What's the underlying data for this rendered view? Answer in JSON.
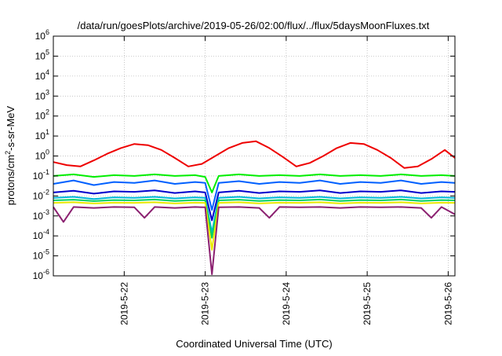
{
  "chart_data": {
    "type": "line",
    "title": "/data/run/goesPlots/archive/2019-05-26/02:00/flux/../flux/5daysMoonFluxes.txt",
    "xlabel": "Coordinated Universal Time (UTC)",
    "ylabel": {
      "prefix": "protons/cm",
      "sup": "2",
      "suffix": "-s-sr-MeV"
    },
    "y_scale": "log",
    "ylim": [
      1e-06,
      1000000.0
    ],
    "y_ticks": [
      {
        "base": "10",
        "exp": "-6",
        "value": 1e-06
      },
      {
        "base": "10",
        "exp": "-5",
        "value": 1e-05
      },
      {
        "base": "10",
        "exp": "-4",
        "value": 0.0001
      },
      {
        "base": "10",
        "exp": "-3",
        "value": 0.001
      },
      {
        "base": "10",
        "exp": "-2",
        "value": 0.01
      },
      {
        "base": "10",
        "exp": "-1",
        "value": 0.1
      },
      {
        "base": "10",
        "exp": "0",
        "value": 1
      },
      {
        "base": "10",
        "exp": "1",
        "value": 10
      },
      {
        "base": "10",
        "exp": "2",
        "value": 100
      },
      {
        "base": "10",
        "exp": "3",
        "value": 1000
      },
      {
        "base": "10",
        "exp": "4",
        "value": 10000
      },
      {
        "base": "10",
        "exp": "5",
        "value": 100000
      },
      {
        "base": "10",
        "exp": "6",
        "value": 1000000
      }
    ],
    "xlim": [
      "2019-05-21T03:00",
      "2019-05-26T02:00"
    ],
    "x_ticks": [
      {
        "label": "2019-5-22",
        "value": "2019-05-22T00:00"
      },
      {
        "label": "2019-5-23",
        "value": "2019-05-23T00:00"
      },
      {
        "label": "2019-5-24",
        "value": "2019-05-24T00:00"
      },
      {
        "label": "2019-5-25",
        "value": "2019-05-25T00:00"
      },
      {
        "label": "2019-5-26",
        "value": "2019-05-26T00:00"
      }
    ],
    "grid": true,
    "series": [
      {
        "color": "#ee0000",
        "points": [
          [
            "2019-05-21T03:00",
            0.5
          ],
          [
            "2019-05-21T07:00",
            0.35
          ],
          [
            "2019-05-21T11:00",
            0.3
          ],
          [
            "2019-05-21T15:00",
            0.6
          ],
          [
            "2019-05-21T19:00",
            1.3
          ],
          [
            "2019-05-21T23:00",
            2.5
          ],
          [
            "2019-05-22T03:00",
            4.0
          ],
          [
            "2019-05-22T07:00",
            3.5
          ],
          [
            "2019-05-22T11:00",
            2.0
          ],
          [
            "2019-05-22T15:00",
            0.8
          ],
          [
            "2019-05-22T19:00",
            0.3
          ],
          [
            "2019-05-22T23:00",
            0.4
          ],
          [
            "2019-05-23T03:00",
            1.0
          ],
          [
            "2019-05-23T07:00",
            2.5
          ],
          [
            "2019-05-23T11:00",
            4.5
          ],
          [
            "2019-05-23T15:00",
            5.5
          ],
          [
            "2019-05-23T19:00",
            2.5
          ],
          [
            "2019-05-23T23:00",
            0.9
          ],
          [
            "2019-05-24T03:00",
            0.3
          ],
          [
            "2019-05-24T07:00",
            0.45
          ],
          [
            "2019-05-24T11:00",
            1.0
          ],
          [
            "2019-05-24T15:00",
            2.5
          ],
          [
            "2019-05-24T19:00",
            4.5
          ],
          [
            "2019-05-24T23:00",
            4.0
          ],
          [
            "2019-05-25T03:00",
            2.0
          ],
          [
            "2019-05-25T07:00",
            0.8
          ],
          [
            "2019-05-25T11:00",
            0.25
          ],
          [
            "2019-05-25T15:00",
            0.3
          ],
          [
            "2019-05-25T19:00",
            0.7
          ],
          [
            "2019-05-25T23:00",
            2.0
          ],
          [
            "2019-05-26T02:00",
            0.8
          ]
        ]
      },
      {
        "color": "#00ee00",
        "points": [
          [
            "2019-05-21T03:00",
            0.1
          ],
          [
            "2019-05-21T09:00",
            0.12
          ],
          [
            "2019-05-21T15:00",
            0.09
          ],
          [
            "2019-05-21T21:00",
            0.11
          ],
          [
            "2019-05-22T03:00",
            0.1
          ],
          [
            "2019-05-22T09:00",
            0.12
          ],
          [
            "2019-05-22T15:00",
            0.1
          ],
          [
            "2019-05-22T21:00",
            0.11
          ],
          [
            "2019-05-23T00:00",
            0.09
          ],
          [
            "2019-05-23T02:00",
            0.015
          ],
          [
            "2019-05-23T04:00",
            0.1
          ],
          [
            "2019-05-23T10:00",
            0.12
          ],
          [
            "2019-05-23T16:00",
            0.1
          ],
          [
            "2019-05-23T22:00",
            0.11
          ],
          [
            "2019-05-24T04:00",
            0.1
          ],
          [
            "2019-05-24T10:00",
            0.12
          ],
          [
            "2019-05-24T16:00",
            0.1
          ],
          [
            "2019-05-24T22:00",
            0.11
          ],
          [
            "2019-05-25T04:00",
            0.1
          ],
          [
            "2019-05-25T10:00",
            0.12
          ],
          [
            "2019-05-25T16:00",
            0.1
          ],
          [
            "2019-05-25T22:00",
            0.11
          ],
          [
            "2019-05-26T02:00",
            0.1
          ]
        ]
      },
      {
        "color": "#0060ff",
        "points": [
          [
            "2019-05-21T03:00",
            0.04
          ],
          [
            "2019-05-21T09:00",
            0.06
          ],
          [
            "2019-05-21T15:00",
            0.035
          ],
          [
            "2019-05-21T21:00",
            0.05
          ],
          [
            "2019-05-22T03:00",
            0.045
          ],
          [
            "2019-05-22T09:00",
            0.06
          ],
          [
            "2019-05-22T15:00",
            0.04
          ],
          [
            "2019-05-22T21:00",
            0.05
          ],
          [
            "2019-05-23T00:00",
            0.045
          ],
          [
            "2019-05-23T02:00",
            0.002
          ],
          [
            "2019-05-23T04:00",
            0.045
          ],
          [
            "2019-05-23T10:00",
            0.055
          ],
          [
            "2019-05-23T16:00",
            0.04
          ],
          [
            "2019-05-23T22:00",
            0.05
          ],
          [
            "2019-05-24T04:00",
            0.045
          ],
          [
            "2019-05-24T10:00",
            0.06
          ],
          [
            "2019-05-24T16:00",
            0.04
          ],
          [
            "2019-05-24T22:00",
            0.05
          ],
          [
            "2019-05-25T04:00",
            0.045
          ],
          [
            "2019-05-25T10:00",
            0.06
          ],
          [
            "2019-05-25T16:00",
            0.04
          ],
          [
            "2019-05-25T22:00",
            0.05
          ],
          [
            "2019-05-26T02:00",
            0.045
          ]
        ]
      },
      {
        "color": "#0000cc",
        "points": [
          [
            "2019-05-21T03:00",
            0.015
          ],
          [
            "2019-05-21T09:00",
            0.018
          ],
          [
            "2019-05-21T15:00",
            0.013
          ],
          [
            "2019-05-21T21:00",
            0.017
          ],
          [
            "2019-05-22T03:00",
            0.016
          ],
          [
            "2019-05-22T09:00",
            0.019
          ],
          [
            "2019-05-22T15:00",
            0.014
          ],
          [
            "2019-05-22T21:00",
            0.017
          ],
          [
            "2019-05-23T00:00",
            0.015
          ],
          [
            "2019-05-23T02:00",
            0.0006
          ],
          [
            "2019-05-23T04:00",
            0.015
          ],
          [
            "2019-05-23T10:00",
            0.018
          ],
          [
            "2019-05-23T16:00",
            0.014
          ],
          [
            "2019-05-23T22:00",
            0.017
          ],
          [
            "2019-05-24T04:00",
            0.016
          ],
          [
            "2019-05-24T10:00",
            0.019
          ],
          [
            "2019-05-24T16:00",
            0.014
          ],
          [
            "2019-05-24T22:00",
            0.017
          ],
          [
            "2019-05-25T04:00",
            0.016
          ],
          [
            "2019-05-25T10:00",
            0.019
          ],
          [
            "2019-05-25T16:00",
            0.014
          ],
          [
            "2019-05-25T22:00",
            0.017
          ],
          [
            "2019-05-26T02:00",
            0.016
          ]
        ]
      },
      {
        "color": "#00b8d8",
        "points": [
          [
            "2019-05-21T03:00",
            0.008
          ],
          [
            "2019-05-21T09:00",
            0.009
          ],
          [
            "2019-05-21T15:00",
            0.007
          ],
          [
            "2019-05-21T21:00",
            0.0085
          ],
          [
            "2019-05-22T03:00",
            0.008
          ],
          [
            "2019-05-22T09:00",
            0.009
          ],
          [
            "2019-05-22T15:00",
            0.0075
          ],
          [
            "2019-05-22T21:00",
            0.0085
          ],
          [
            "2019-05-23T00:00",
            0.008
          ],
          [
            "2019-05-23T02:00",
            0.00015
          ],
          [
            "2019-05-23T04:00",
            0.008
          ],
          [
            "2019-05-23T10:00",
            0.009
          ],
          [
            "2019-05-23T16:00",
            0.0075
          ],
          [
            "2019-05-23T22:00",
            0.0085
          ],
          [
            "2019-05-24T04:00",
            0.008
          ],
          [
            "2019-05-24T10:00",
            0.009
          ],
          [
            "2019-05-24T16:00",
            0.0075
          ],
          [
            "2019-05-24T22:00",
            0.0085
          ],
          [
            "2019-05-25T04:00",
            0.008
          ],
          [
            "2019-05-25T10:00",
            0.009
          ],
          [
            "2019-05-25T16:00",
            0.0075
          ],
          [
            "2019-05-25T22:00",
            0.0085
          ],
          [
            "2019-05-26T02:00",
            0.008
          ]
        ]
      },
      {
        "color": "#00d060",
        "points": [
          [
            "2019-05-21T03:00",
            0.006
          ],
          [
            "2019-05-21T09:00",
            0.0065
          ],
          [
            "2019-05-21T15:00",
            0.0055
          ],
          [
            "2019-05-21T21:00",
            0.0062
          ],
          [
            "2019-05-22T03:00",
            0.006
          ],
          [
            "2019-05-22T09:00",
            0.0066
          ],
          [
            "2019-05-22T15:00",
            0.0056
          ],
          [
            "2019-05-22T21:00",
            0.0062
          ],
          [
            "2019-05-23T00:00",
            0.006
          ],
          [
            "2019-05-23T02:00",
            8e-05
          ],
          [
            "2019-05-23T04:00",
            0.006
          ],
          [
            "2019-05-23T10:00",
            0.0065
          ],
          [
            "2019-05-23T16:00",
            0.0056
          ],
          [
            "2019-05-23T22:00",
            0.0062
          ],
          [
            "2019-05-24T04:00",
            0.006
          ],
          [
            "2019-05-24T10:00",
            0.0066
          ],
          [
            "2019-05-24T16:00",
            0.0056
          ],
          [
            "2019-05-24T22:00",
            0.0062
          ],
          [
            "2019-05-25T04:00",
            0.006
          ],
          [
            "2019-05-25T10:00",
            0.0066
          ],
          [
            "2019-05-25T16:00",
            0.0056
          ],
          [
            "2019-05-25T22:00",
            0.0062
          ],
          [
            "2019-05-26T02:00",
            0.006
          ]
        ]
      },
      {
        "color": "#e8e800",
        "points": [
          [
            "2019-05-21T03:00",
            0.0045
          ],
          [
            "2019-05-21T09:00",
            0.0048
          ],
          [
            "2019-05-21T15:00",
            0.0042
          ],
          [
            "2019-05-21T21:00",
            0.0046
          ],
          [
            "2019-05-22T03:00",
            0.0045
          ],
          [
            "2019-05-22T09:00",
            0.0048
          ],
          [
            "2019-05-22T15:00",
            0.0042
          ],
          [
            "2019-05-22T21:00",
            0.0046
          ],
          [
            "2019-05-23T00:00",
            0.0045
          ],
          [
            "2019-05-23T02:00",
            2e-05
          ],
          [
            "2019-05-23T04:00",
            0.0045
          ],
          [
            "2019-05-23T10:00",
            0.0048
          ],
          [
            "2019-05-23T16:00",
            0.0042
          ],
          [
            "2019-05-23T22:00",
            0.0046
          ],
          [
            "2019-05-24T04:00",
            0.0045
          ],
          [
            "2019-05-24T10:00",
            0.0048
          ],
          [
            "2019-05-24T16:00",
            0.0042
          ],
          [
            "2019-05-24T22:00",
            0.0046
          ],
          [
            "2019-05-25T04:00",
            0.0045
          ],
          [
            "2019-05-25T10:00",
            0.0048
          ],
          [
            "2019-05-25T16:00",
            0.0042
          ],
          [
            "2019-05-25T22:00",
            0.0046
          ],
          [
            "2019-05-26T02:00",
            0.0045
          ]
        ]
      },
      {
        "color": "#8b2070",
        "points": [
          [
            "2019-05-21T03:00",
            0.0028
          ],
          [
            "2019-05-21T06:00",
            0.0005
          ],
          [
            "2019-05-21T09:00",
            0.0028
          ],
          [
            "2019-05-21T15:00",
            0.0025
          ],
          [
            "2019-05-21T21:00",
            0.0028
          ],
          [
            "2019-05-22T03:00",
            0.0027
          ],
          [
            "2019-05-22T06:00",
            0.0008
          ],
          [
            "2019-05-22T09:00",
            0.0028
          ],
          [
            "2019-05-22T15:00",
            0.0025
          ],
          [
            "2019-05-22T21:00",
            0.0028
          ],
          [
            "2019-05-23T00:00",
            0.0027
          ],
          [
            "2019-05-23T02:00",
            1.2e-06
          ],
          [
            "2019-05-23T04:00",
            0.0027
          ],
          [
            "2019-05-23T10:00",
            0.0028
          ],
          [
            "2019-05-23T16:00",
            0.0025
          ],
          [
            "2019-05-23T19:00",
            0.0008
          ],
          [
            "2019-05-23T22:00",
            0.0028
          ],
          [
            "2019-05-24T04:00",
            0.0027
          ],
          [
            "2019-05-24T10:00",
            0.0028
          ],
          [
            "2019-05-24T16:00",
            0.0025
          ],
          [
            "2019-05-24T22:00",
            0.0028
          ],
          [
            "2019-05-25T04:00",
            0.0027
          ],
          [
            "2019-05-25T10:00",
            0.0028
          ],
          [
            "2019-05-25T16:00",
            0.0025
          ],
          [
            "2019-05-25T19:00",
            0.0008
          ],
          [
            "2019-05-25T22:00",
            0.0028
          ],
          [
            "2019-05-26T02:00",
            0.0012
          ]
        ]
      }
    ]
  }
}
